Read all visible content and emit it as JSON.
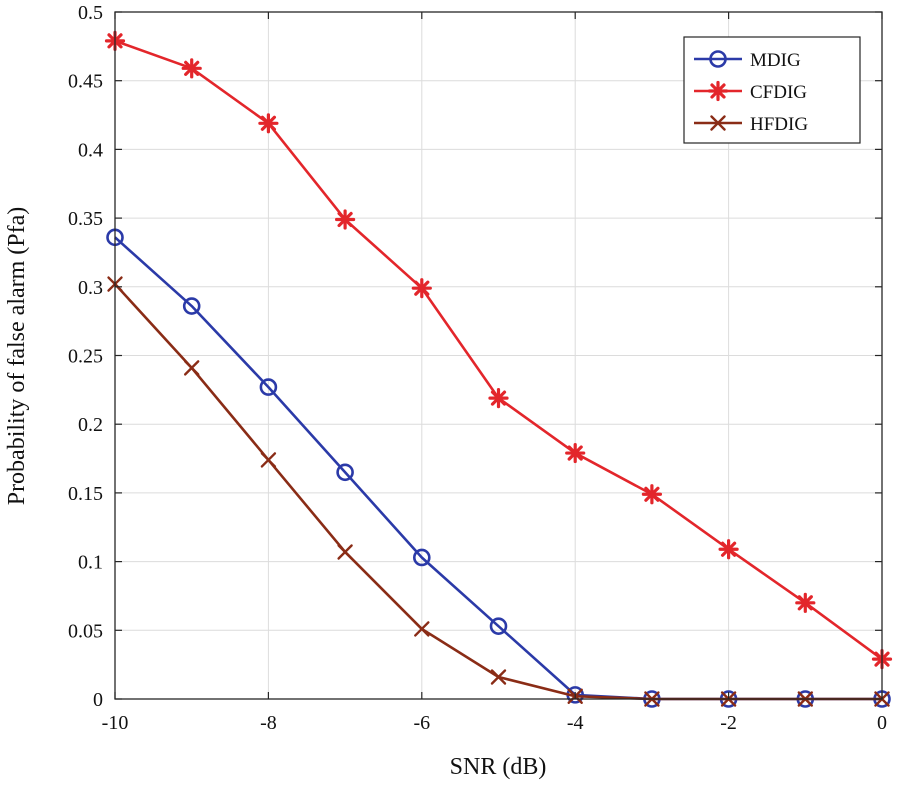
{
  "chart_data": {
    "type": "line",
    "title": "",
    "xlabel": "SNR (dB)",
    "ylabel": "Probability of false alarm (Pfa)",
    "xlim": [
      -10,
      0
    ],
    "ylim": [
      0,
      0.5
    ],
    "xticks": [
      -10,
      -8,
      -6,
      -4,
      -2,
      0
    ],
    "xtick_labels": [
      "-10",
      "-8",
      "-6",
      "-4",
      "-2",
      "0"
    ],
    "yticks": [
      0,
      0.05,
      0.1,
      0.15,
      0.2,
      0.25,
      0.3,
      0.35,
      0.4,
      0.45,
      0.5
    ],
    "ytick_labels": [
      "0",
      "0.05",
      "0.1",
      "0.15",
      "0.2",
      "0.25",
      "0.3",
      "0.35",
      "0.4",
      "0.45",
      "0.5"
    ],
    "grid": true,
    "legend_position": "top-right",
    "x": [
      -10,
      -9,
      -8,
      -7,
      -6,
      -5,
      -4,
      -3,
      -2,
      -1,
      0
    ],
    "series": [
      {
        "name": "MDIG",
        "color": "#2b3aa8",
        "marker": "circle",
        "x": [
          -10,
          -9,
          -8,
          -7,
          -6,
          -5,
          -4,
          -3,
          -2,
          -1,
          0
        ],
        "values": [
          0.336,
          0.286,
          0.227,
          0.165,
          0.103,
          0.053,
          0.003,
          0.0,
          0.0,
          0.0,
          0.0
        ]
      },
      {
        "name": "CFDIG",
        "color": "#e3262b",
        "marker": "star",
        "x": [
          -10,
          -9,
          -8,
          -7,
          -6,
          -5,
          -4,
          -3,
          -2,
          -1,
          0
        ],
        "values": [
          0.479,
          0.459,
          0.419,
          0.349,
          0.299,
          0.219,
          0.179,
          0.149,
          0.109,
          0.07,
          0.029
        ]
      },
      {
        "name": "HFDIG",
        "color": "#8a2c16",
        "marker": "x",
        "x": [
          -10,
          -9,
          -8,
          -7,
          -6,
          -5,
          -4,
          -3,
          -2,
          -1,
          0
        ],
        "values": [
          0.302,
          0.241,
          0.174,
          0.107,
          0.051,
          0.016,
          0.002,
          0.0,
          0.0,
          0.0,
          0.0
        ]
      }
    ]
  }
}
